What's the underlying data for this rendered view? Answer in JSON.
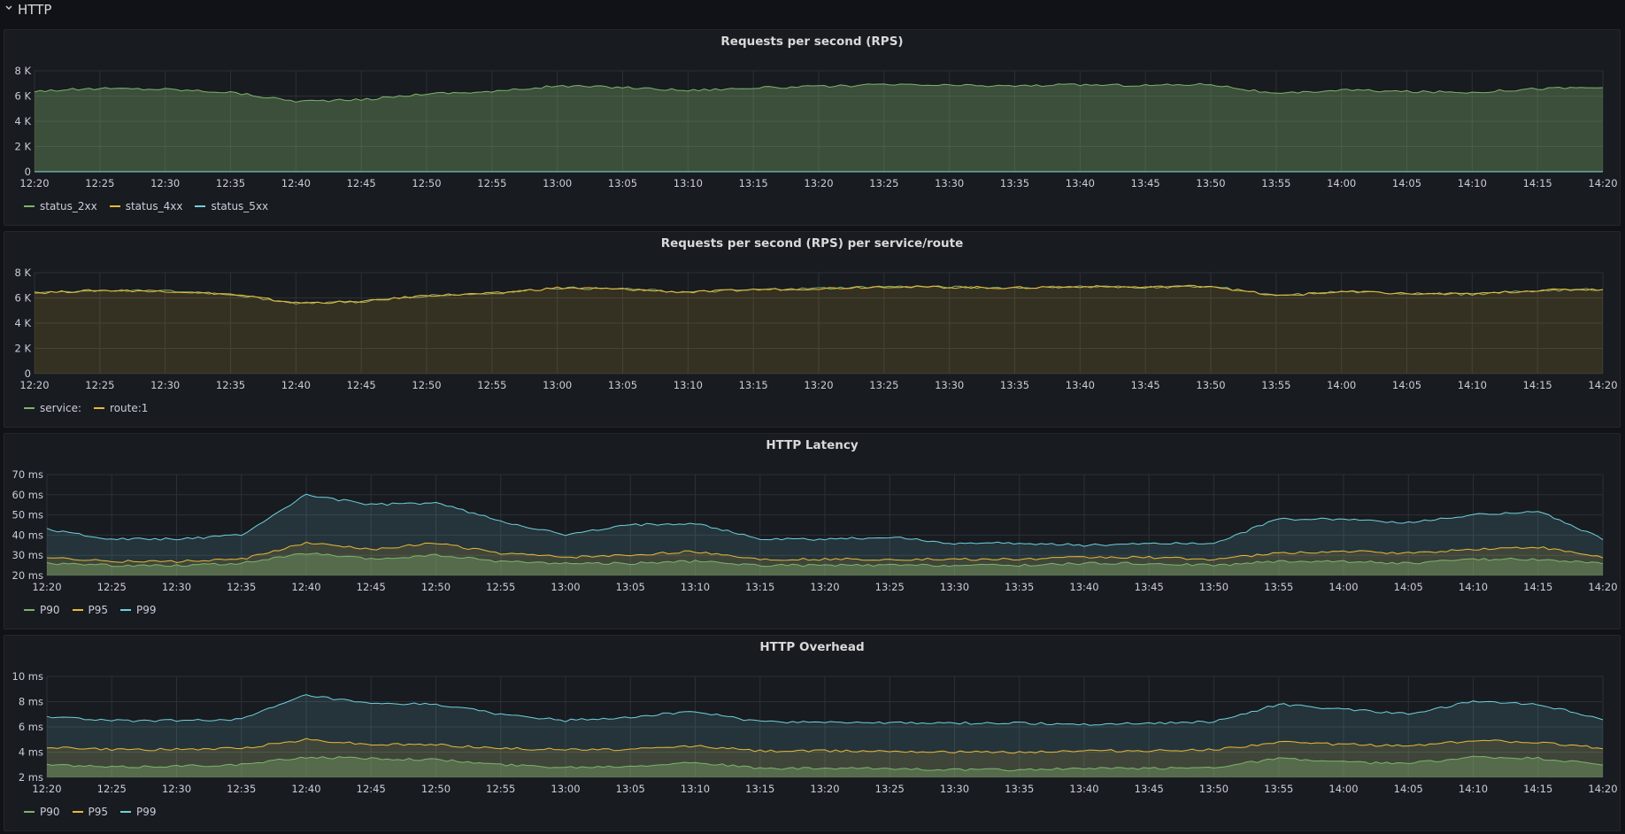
{
  "row": {
    "title": "HTTP"
  },
  "colors": {
    "green": "#7eb26d",
    "yellow": "#eab839",
    "cyan": "#6ed0e0",
    "grid": "#2c3035",
    "axis_text": "#ccccdc"
  },
  "time_ticks": [
    "12:20",
    "12:25",
    "12:30",
    "12:35",
    "12:40",
    "12:45",
    "12:50",
    "12:55",
    "13:00",
    "13:05",
    "13:10",
    "13:15",
    "13:20",
    "13:25",
    "13:30",
    "13:35",
    "13:40",
    "13:45",
    "13:50",
    "13:55",
    "14:00",
    "14:05",
    "14:10",
    "14:15",
    "14:20"
  ],
  "panels": [
    {
      "title": "Requests per second (RPS)",
      "legend": [
        "status_2xx",
        "status_4xx",
        "status_5xx"
      ]
    },
    {
      "title": "Requests per second (RPS) per service/route",
      "legend": [
        "service:",
        "route:1"
      ]
    },
    {
      "title": "HTTP Latency",
      "legend": [
        "P90",
        "P95",
        "P99"
      ]
    },
    {
      "title": "HTTP Overhead",
      "legend": [
        "P90",
        "P95",
        "P99"
      ]
    }
  ],
  "chart_data": [
    {
      "type": "area",
      "title": "Requests per second (RPS)",
      "x_start": "12:20",
      "x_end": "14:20",
      "x_step_minutes": 5,
      "x": [
        "12:20",
        "12:25",
        "12:30",
        "12:35",
        "12:40",
        "12:45",
        "12:50",
        "12:55",
        "13:00",
        "13:05",
        "13:10",
        "13:15",
        "13:20",
        "13:25",
        "13:30",
        "13:35",
        "13:40",
        "13:45",
        "13:50",
        "13:55",
        "14:00",
        "14:05",
        "14:10",
        "14:15",
        "14:20"
      ],
      "ylim": [
        0,
        8000
      ],
      "y_ticks": [
        "0",
        "2 K",
        "4 K",
        "6 K",
        "8 K"
      ],
      "y_tick_values": [
        0,
        2000,
        4000,
        6000,
        8000
      ],
      "grid": true,
      "legend_position": "bottom-left",
      "series": [
        {
          "name": "status_2xx",
          "color": "#7eb26d",
          "fill": true,
          "values": [
            6400,
            6600,
            6550,
            6300,
            5600,
            5700,
            6200,
            6350,
            6800,
            6700,
            6450,
            6650,
            6750,
            6900,
            6850,
            6800,
            6900,
            6850,
            6950,
            6150,
            6500,
            6350,
            6300,
            6600,
            6700
          ]
        },
        {
          "name": "status_4xx",
          "color": "#eab839",
          "fill": false,
          "values": [
            5,
            5,
            5,
            5,
            5,
            5,
            5,
            5,
            5,
            5,
            5,
            5,
            5,
            5,
            5,
            5,
            5,
            5,
            5,
            5,
            5,
            5,
            5,
            5,
            5
          ]
        },
        {
          "name": "status_5xx",
          "color": "#6ed0e0",
          "fill": false,
          "values": [
            0,
            0,
            0,
            0,
            0,
            0,
            0,
            0,
            0,
            0,
            0,
            0,
            0,
            0,
            0,
            0,
            0,
            0,
            0,
            0,
            0,
            0,
            0,
            0,
            0
          ]
        }
      ]
    },
    {
      "type": "area",
      "title": "Requests per second (RPS) per service/route",
      "x": [
        "12:20",
        "12:25",
        "12:30",
        "12:35",
        "12:40",
        "12:45",
        "12:50",
        "12:55",
        "13:00",
        "13:05",
        "13:10",
        "13:15",
        "13:20",
        "13:25",
        "13:30",
        "13:35",
        "13:40",
        "13:45",
        "13:50",
        "13:55",
        "14:00",
        "14:05",
        "14:10",
        "14:15",
        "14:20"
      ],
      "ylim": [
        0,
        8000
      ],
      "y_ticks": [
        "0",
        "2 K",
        "4 K",
        "6 K",
        "8 K"
      ],
      "y_tick_values": [
        0,
        2000,
        4000,
        6000,
        8000
      ],
      "grid": true,
      "legend_position": "bottom-left",
      "series": [
        {
          "name": "service:",
          "color": "#7eb26d",
          "fill": false,
          "values": [
            6400,
            6600,
            6550,
            6300,
            5600,
            5700,
            6200,
            6350,
            6800,
            6700,
            6450,
            6650,
            6750,
            6900,
            6850,
            6800,
            6900,
            6850,
            6950,
            6150,
            6500,
            6350,
            6300,
            6600,
            6700
          ]
        },
        {
          "name": "route:1",
          "color": "#eab839",
          "fill": true,
          "values": [
            6400,
            6600,
            6550,
            6300,
            5600,
            5700,
            6200,
            6350,
            6800,
            6700,
            6450,
            6650,
            6750,
            6900,
            6850,
            6800,
            6900,
            6850,
            6950,
            6150,
            6500,
            6350,
            6300,
            6600,
            6700
          ]
        }
      ]
    },
    {
      "type": "area",
      "title": "HTTP Latency",
      "x": [
        "12:20",
        "12:25",
        "12:30",
        "12:35",
        "12:40",
        "12:45",
        "12:50",
        "12:55",
        "13:00",
        "13:05",
        "13:10",
        "13:15",
        "13:20",
        "13:25",
        "13:30",
        "13:35",
        "13:40",
        "13:45",
        "13:50",
        "13:55",
        "14:00",
        "14:05",
        "14:10",
        "14:15",
        "14:20"
      ],
      "ylim": [
        20,
        70
      ],
      "y_ticks": [
        "20 ms",
        "30 ms",
        "40 ms",
        "50 ms",
        "60 ms",
        "70 ms"
      ],
      "y_tick_values": [
        20,
        30,
        40,
        50,
        60,
        70
      ],
      "grid": true,
      "legend_position": "bottom-left",
      "series": [
        {
          "name": "P90",
          "color": "#7eb26d",
          "fill": true,
          "values": [
            26,
            25,
            25,
            26,
            31,
            28,
            30,
            27,
            26,
            26,
            27,
            25,
            25,
            25,
            25,
            25,
            26,
            26,
            25,
            27,
            27,
            26,
            28,
            28,
            26
          ]
        },
        {
          "name": "P95",
          "color": "#eab839",
          "fill": true,
          "values": [
            29,
            27,
            27,
            28,
            36,
            33,
            36,
            31,
            29,
            30,
            32,
            28,
            28,
            28,
            28,
            28,
            29,
            29,
            28,
            31,
            32,
            31,
            33,
            34,
            29
          ]
        },
        {
          "name": "P99",
          "color": "#6ed0e0",
          "fill": true,
          "values": [
            43,
            38,
            38,
            40,
            60,
            55,
            56,
            47,
            40,
            45,
            46,
            38,
            38,
            39,
            36,
            36,
            35,
            36,
            36,
            48,
            48,
            46,
            50,
            52,
            38
          ]
        }
      ]
    },
    {
      "type": "area",
      "title": "HTTP Overhead",
      "x": [
        "12:20",
        "12:25",
        "12:30",
        "12:35",
        "12:40",
        "12:45",
        "12:50",
        "12:55",
        "13:00",
        "13:05",
        "13:10",
        "13:15",
        "13:20",
        "13:25",
        "13:30",
        "13:35",
        "13:40",
        "13:45",
        "13:50",
        "13:55",
        "14:00",
        "14:05",
        "14:10",
        "14:15",
        "14:20"
      ],
      "ylim": [
        2,
        10
      ],
      "y_ticks": [
        "2 ms",
        "4 ms",
        "6 ms",
        "8 ms",
        "10 ms"
      ],
      "y_tick_values": [
        2,
        4,
        6,
        8,
        10
      ],
      "grid": true,
      "legend_position": "bottom-left",
      "series": [
        {
          "name": "P90",
          "color": "#7eb26d",
          "fill": true,
          "values": [
            3.0,
            2.8,
            2.9,
            3.0,
            3.6,
            3.5,
            3.4,
            3.0,
            2.8,
            2.9,
            3.2,
            2.7,
            2.7,
            2.7,
            2.6,
            2.6,
            2.7,
            2.7,
            2.8,
            3.5,
            3.2,
            3.1,
            3.6,
            3.5,
            3.0
          ]
        },
        {
          "name": "P95",
          "color": "#eab839",
          "fill": true,
          "values": [
            4.4,
            4.2,
            4.2,
            4.3,
            5.0,
            4.6,
            4.6,
            4.3,
            4.2,
            4.2,
            4.5,
            4.1,
            4.1,
            4.1,
            4.0,
            4.0,
            4.1,
            4.1,
            4.2,
            4.8,
            4.6,
            4.5,
            4.9,
            4.8,
            4.3
          ]
        },
        {
          "name": "P99",
          "color": "#6ed0e0",
          "fill": true,
          "values": [
            6.8,
            6.5,
            6.5,
            6.6,
            8.5,
            7.8,
            7.8,
            7.0,
            6.5,
            6.8,
            7.2,
            6.4,
            6.4,
            6.3,
            6.3,
            6.3,
            6.2,
            6.3,
            6.4,
            7.8,
            7.4,
            7.0,
            8.0,
            7.8,
            6.6
          ]
        }
      ]
    }
  ]
}
